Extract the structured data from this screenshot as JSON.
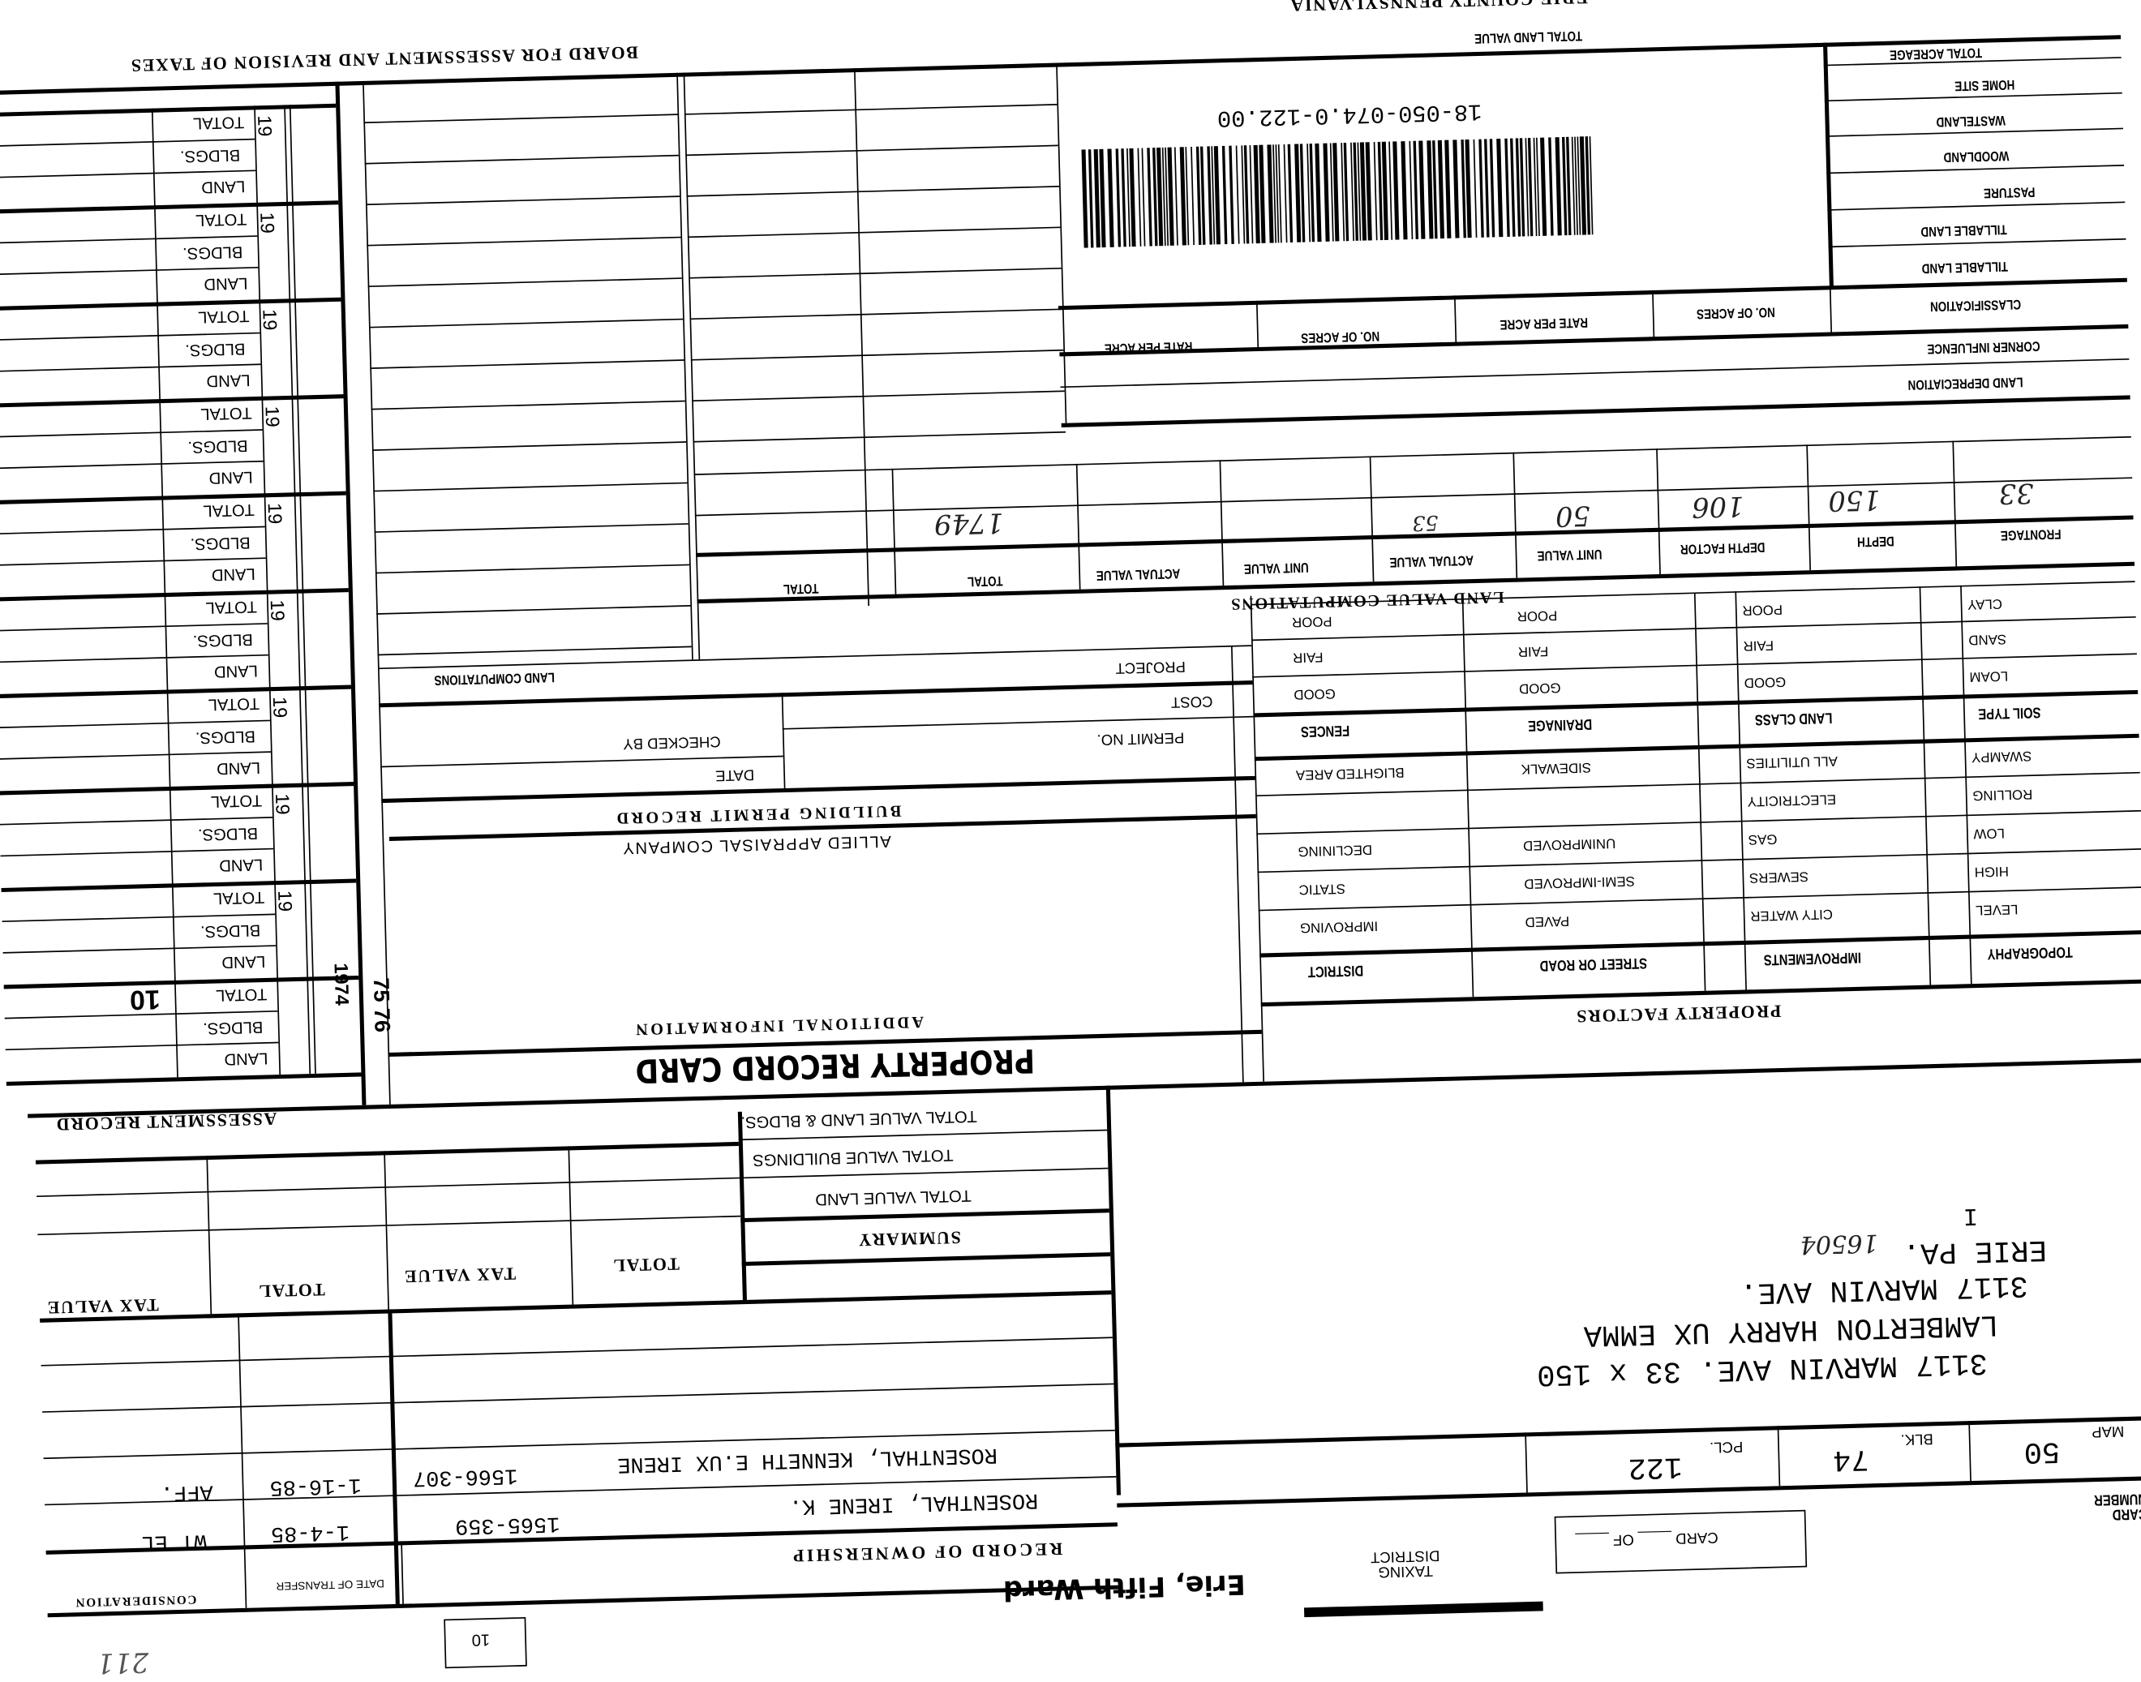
{
  "header": {
    "board_title": "BOARD FOR ASSESSMENT AND REVISION OF TAXES",
    "county": "ERIE COUNTY PENNSYLVANIA",
    "total_land_value": "TOTAL LAND VALUE"
  },
  "land_classes": {
    "labels": [
      "TOTAL ACREAGE",
      "HOME SITE",
      "WASTELAND",
      "WOODLAND",
      "PASTURE",
      "TILLABLE LAND",
      "TILLABLE LAND",
      "CLASSIFICATION",
      "CORNER INFLUENCE",
      "LAND DEPRECIATION"
    ],
    "columns": [
      "NO. OF ACRES",
      "RATE PER ACRE",
      "NO. OF ACRES",
      "RATE PER ACRE"
    ]
  },
  "barcode": {
    "number": "18-050-074.0-122.00"
  },
  "land_value": {
    "title": "LAND VALUE COMPUTATIONS",
    "headers": [
      "FRONTAGE",
      "DEPTH",
      "DEPTH FACTOR",
      "UNIT VALUE",
      "ACTUAL VALUE",
      "UNIT VALUE",
      "ACTUAL VALUE",
      "TOTAL",
      "TOTAL"
    ],
    "values": {
      "frontage": "33",
      "depth": "150",
      "depth_factor": "106",
      "unit_value": "50",
      "actual_value": "53",
      "total": "1749"
    }
  },
  "property_factors": {
    "title": "PROPERTY FACTORS",
    "col1": [
      "CLAY",
      "SAND",
      "LOAM",
      "SOIL TYPE",
      "SWAMPY",
      "ROLLING",
      "LOW",
      "HIGH",
      "LEVEL",
      "TOPOGRAPHY"
    ],
    "col2": [
      "POOR",
      "FAIR",
      "GOOD",
      "LAND CLASS",
      "ALL UTILITIES",
      "ELECTRICITY",
      "GAS",
      "SEWERS",
      "CITY WATER",
      "IMPROVEMENTS"
    ],
    "col3": [
      "POOR",
      "FAIR",
      "GOOD",
      "DRAINAGE",
      "SIDEWALK",
      "",
      "UNIMPROVED",
      "SEMI-IMPROVED",
      "PAVED",
      "STREET OR ROAD"
    ],
    "col4": [
      "POOR",
      "FAIR",
      "GOOD",
      "FENCES",
      "BLIGHTED AREA",
      "",
      "DECLINING",
      "STATIC",
      "IMPROVING",
      "DISTRICT"
    ]
  },
  "permits": {
    "land_computations": "LAND COMPUTATIONS",
    "project": "PROJECT",
    "cost": "COST",
    "permit_no": "PERMIT NO.",
    "checked_by": "CHECKED BY",
    "date": "DATE",
    "title": "BUILDING PERMIT RECORD",
    "company": "ALLIED APPRAISAL COMPANY",
    "additional": "ADDITIONAL INFORMATION",
    "card_title": "PROPERTY RECORD CARD"
  },
  "assessment": {
    "title": "ASSESSMENT RECORD",
    "year_prefix": "19",
    "rows": [
      "TOTAL",
      "BLDGS.",
      "LAND"
    ],
    "last_year": "1974",
    "margin_note": "75 76",
    "overlay": "10"
  },
  "summary": {
    "title": "SUMMARY",
    "rows": [
      "TOTAL VALUE LAND & BLDGS.",
      "TOTAL VALUE BUILDINGS",
      "TOTAL VALUE LAND"
    ],
    "columns": [
      "TOTAL",
      "TAX VALUE",
      "TOTAL",
      "TAX VALUE"
    ]
  },
  "ownership": {
    "title": "RECORD OF OWNERSHIP",
    "date_header": "DATE OF TRANSFER",
    "consideration_header": "CONSIDERATION",
    "records": [
      {
        "name": "ROSENTHAL, IRENE K.",
        "book": "1565-359",
        "date": "1-4-85",
        "consideration": "WT EL"
      },
      {
        "name": "ROSENTHAL, KENNETH E.UX IRENE",
        "book": "1566-307",
        "date": "1-16-85",
        "consideration": "AFF."
      }
    ],
    "box_number": "10",
    "scribble": "211"
  },
  "address": {
    "lines": [
      "3117 MARVIN AVE.   33 x 150",
      "LAMBERTON HARRY  UX EMMA",
      "3117 MARVIN AVE.",
      "ERIE PA.",
      "I"
    ],
    "zip": "16504"
  },
  "parcel": {
    "map_label": "MAP",
    "map": "50",
    "blk_label": "BLK.",
    "blk": "74",
    "pcl_label": "PCL.",
    "pcl": "122",
    "card_number_label": "CARD NUMBER",
    "card_of": "CARD ____ OF ____",
    "taxing_district_label": "TAXING DISTRICT",
    "taxing_district": "Erie, Fifth Ward"
  }
}
